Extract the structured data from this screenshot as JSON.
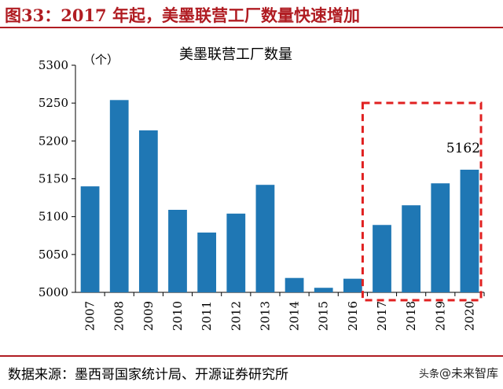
{
  "figure": {
    "title": "图33：2017 年起，美墨联营工厂数量快速增加"
  },
  "source": {
    "text": "数据来源：墨西哥国家统计局、开源证券研究所"
  },
  "watermark": {
    "mark": "头条",
    "text": "@未来智库"
  },
  "colors": {
    "bar": "#1f77b4",
    "accent": "#b01c22",
    "highlight_box": "#e02020"
  },
  "chart_data": {
    "type": "bar",
    "title": "美墨联营工厂数量",
    "unit_label": "（个）",
    "categories": [
      "2007",
      "2008",
      "2009",
      "2010",
      "2011",
      "2012",
      "2013",
      "2014",
      "2015",
      "2016",
      "2017",
      "2018",
      "2019",
      "2020"
    ],
    "values": [
      5140,
      5254,
      5214,
      5109,
      5079,
      5104,
      5142,
      5019,
      5006,
      5018,
      5089,
      5115,
      5144,
      5162
    ],
    "ylim": [
      5000,
      5300
    ],
    "yticks": [
      5000,
      5050,
      5100,
      5150,
      5200,
      5250,
      5300
    ],
    "grid": false,
    "data_labels": [
      {
        "category": "2020",
        "text": "5162"
      }
    ],
    "highlight": {
      "from": "2017",
      "to": "2020",
      "style": "dashed-box"
    }
  }
}
